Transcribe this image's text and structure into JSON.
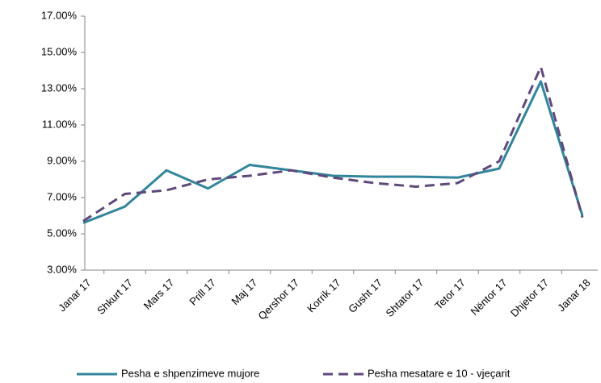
{
  "chart_data": {
    "type": "line",
    "categories": [
      "Janar 17",
      "Shkurt 17",
      "Mars 17",
      "Prill 17",
      "Maj 17",
      "Qershor 17",
      "Korrik 17",
      "Gusht 17",
      "Shtator 17",
      "Tetor 17",
      "Nëntor 17",
      "Dhjetor 17",
      "Janar 18"
    ],
    "series": [
      {
        "name": "Pesha e shpenzimeve mujore",
        "color": "#31859c",
        "line_style": "solid",
        "values": [
          5.6,
          6.5,
          8.5,
          7.5,
          8.8,
          8.5,
          8.2,
          8.15,
          8.15,
          8.1,
          8.6,
          13.4,
          6.0
        ]
      },
      {
        "name": "Pesha mesatare e 10 - vjeçarit",
        "color": "#5f497a",
        "line_style": "dashed",
        "values": [
          5.7,
          7.2,
          7.4,
          8.0,
          8.2,
          8.5,
          8.1,
          7.8,
          7.6,
          7.8,
          9.0,
          14.2,
          5.9
        ]
      }
    ],
    "ylim": [
      3,
      17
    ],
    "yticks": [
      {
        "value": 3,
        "label": "3.00%"
      },
      {
        "value": 5,
        "label": "5.00%"
      },
      {
        "value": 7,
        "label": "7.00%"
      },
      {
        "value": 9,
        "label": "9.00%"
      },
      {
        "value": 11,
        "label": "11.00%"
      },
      {
        "value": 13,
        "label": "13.00%"
      },
      {
        "value": 15,
        "label": "15.00%"
      },
      {
        "value": 17,
        "label": "17.00%"
      }
    ],
    "grid": false,
    "legend": "bottom"
  }
}
